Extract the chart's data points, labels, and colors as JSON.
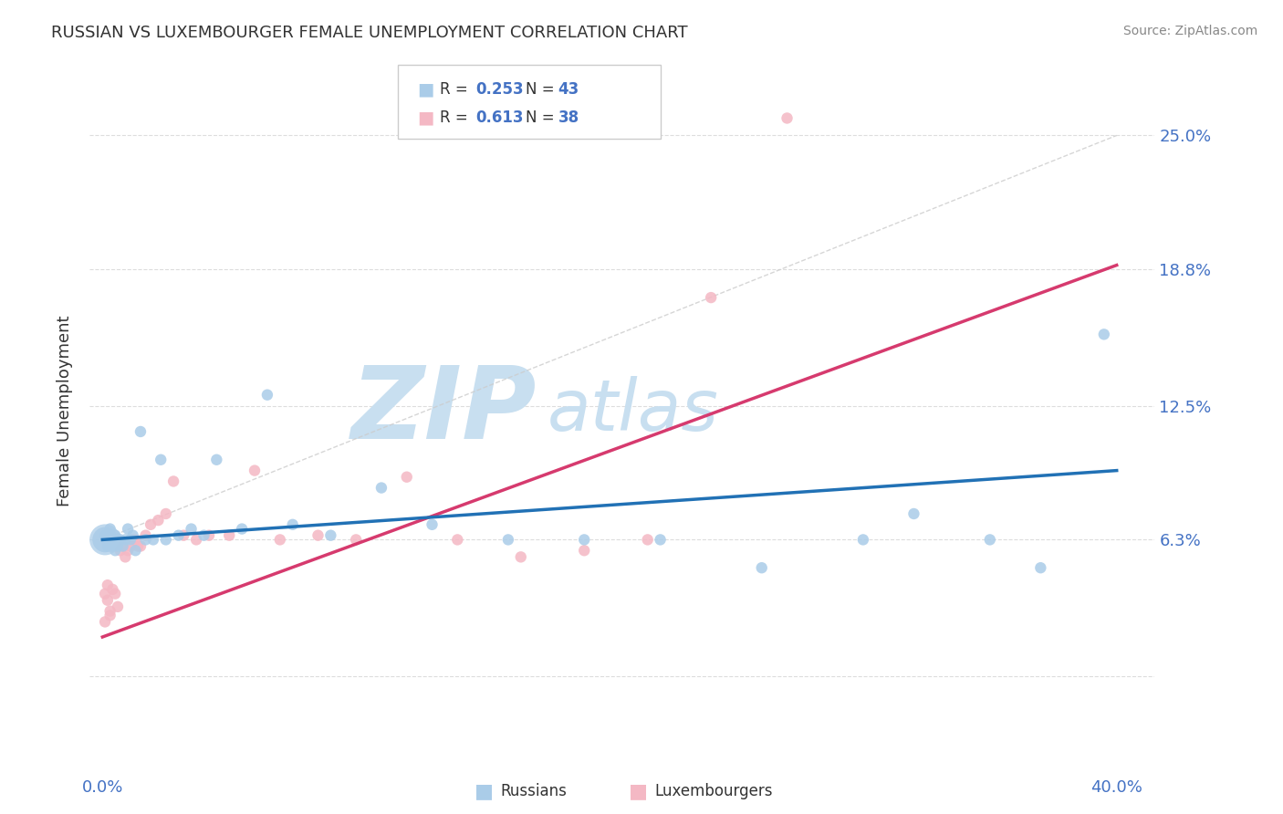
{
  "title": "RUSSIAN VS LUXEMBOURGER FEMALE UNEMPLOYMENT CORRELATION CHART",
  "source": "Source: ZipAtlas.com",
  "ylabel": "Female Unemployment",
  "yticks": [
    0.0,
    0.063,
    0.125,
    0.188,
    0.25
  ],
  "ytick_labels": [
    "",
    "6.3%",
    "12.5%",
    "18.8%",
    "25.0%"
  ],
  "xlim": [
    -0.005,
    0.415
  ],
  "ylim": [
    -0.03,
    0.275
  ],
  "russian_color": "#aacce8",
  "russian_line_color": "#2171b5",
  "luxembourger_color": "#f4b8c4",
  "luxembourger_line_color": "#d63a6e",
  "watermark": "ZIPatlas",
  "watermark_color": "#c8dff0",
  "background_color": "#ffffff",
  "grid_color": "#dddddd",
  "title_color": "#333333",
  "tick_color": "#4472c4",
  "source_color": "#888888",
  "russian_x": [
    0.001,
    0.001,
    0.002,
    0.002,
    0.003,
    0.003,
    0.004,
    0.004,
    0.005,
    0.005,
    0.006,
    0.006,
    0.007,
    0.008,
    0.009,
    0.01,
    0.011,
    0.012,
    0.013,
    0.015,
    0.017,
    0.02,
    0.023,
    0.025,
    0.03,
    0.035,
    0.04,
    0.045,
    0.055,
    0.065,
    0.075,
    0.09,
    0.11,
    0.13,
    0.16,
    0.19,
    0.22,
    0.26,
    0.3,
    0.32,
    0.35,
    0.37,
    0.395
  ],
  "russian_y": [
    0.063,
    0.065,
    0.06,
    0.063,
    0.062,
    0.068,
    0.06,
    0.063,
    0.065,
    0.058,
    0.063,
    0.06,
    0.063,
    0.06,
    0.063,
    0.068,
    0.063,
    0.065,
    0.058,
    0.113,
    0.063,
    0.063,
    0.1,
    0.063,
    0.065,
    0.068,
    0.065,
    0.1,
    0.068,
    0.13,
    0.07,
    0.065,
    0.087,
    0.07,
    0.063,
    0.063,
    0.063,
    0.05,
    0.063,
    0.075,
    0.063,
    0.05,
    0.158
  ],
  "russian_sizes": [
    400,
    80,
    80,
    80,
    80,
    80,
    80,
    80,
    80,
    80,
    80,
    80,
    80,
    80,
    80,
    80,
    80,
    80,
    80,
    80,
    80,
    80,
    80,
    80,
    80,
    80,
    80,
    80,
    80,
    80,
    80,
    80,
    80,
    80,
    80,
    80,
    80,
    80,
    80,
    80,
    80,
    80,
    80
  ],
  "luxembourger_x": [
    0.001,
    0.001,
    0.002,
    0.002,
    0.003,
    0.003,
    0.004,
    0.005,
    0.006,
    0.007,
    0.008,
    0.009,
    0.01,
    0.011,
    0.012,
    0.013,
    0.014,
    0.015,
    0.017,
    0.019,
    0.022,
    0.025,
    0.028,
    0.032,
    0.037,
    0.042,
    0.05,
    0.06,
    0.07,
    0.085,
    0.1,
    0.12,
    0.14,
    0.165,
    0.19,
    0.215,
    0.24,
    0.27
  ],
  "luxembourger_y": [
    0.025,
    0.038,
    0.042,
    0.035,
    0.028,
    0.03,
    0.04,
    0.038,
    0.032,
    0.058,
    0.06,
    0.055,
    0.058,
    0.06,
    0.063,
    0.063,
    0.06,
    0.06,
    0.065,
    0.07,
    0.072,
    0.075,
    0.09,
    0.065,
    0.063,
    0.065,
    0.065,
    0.095,
    0.063,
    0.065,
    0.063,
    0.092,
    0.063,
    0.055,
    0.058,
    0.063,
    0.175,
    0.258
  ],
  "luxembourger_sizes": [
    80,
    80,
    80,
    80,
    80,
    80,
    80,
    80,
    80,
    80,
    80,
    80,
    80,
    80,
    80,
    80,
    80,
    80,
    80,
    80,
    80,
    80,
    80,
    80,
    80,
    80,
    80,
    80,
    80,
    80,
    80,
    80,
    80,
    80,
    80,
    80,
    80,
    80
  ],
  "ref_line_x": [
    0.0,
    0.4
  ],
  "ref_line_y": [
    0.063,
    0.25
  ],
  "lux_trend_x": [
    0.0,
    0.4
  ],
  "lux_trend_y": [
    0.018,
    0.19
  ],
  "rus_trend_x": [
    0.0,
    0.4
  ],
  "rus_trend_y": [
    0.063,
    0.095
  ]
}
